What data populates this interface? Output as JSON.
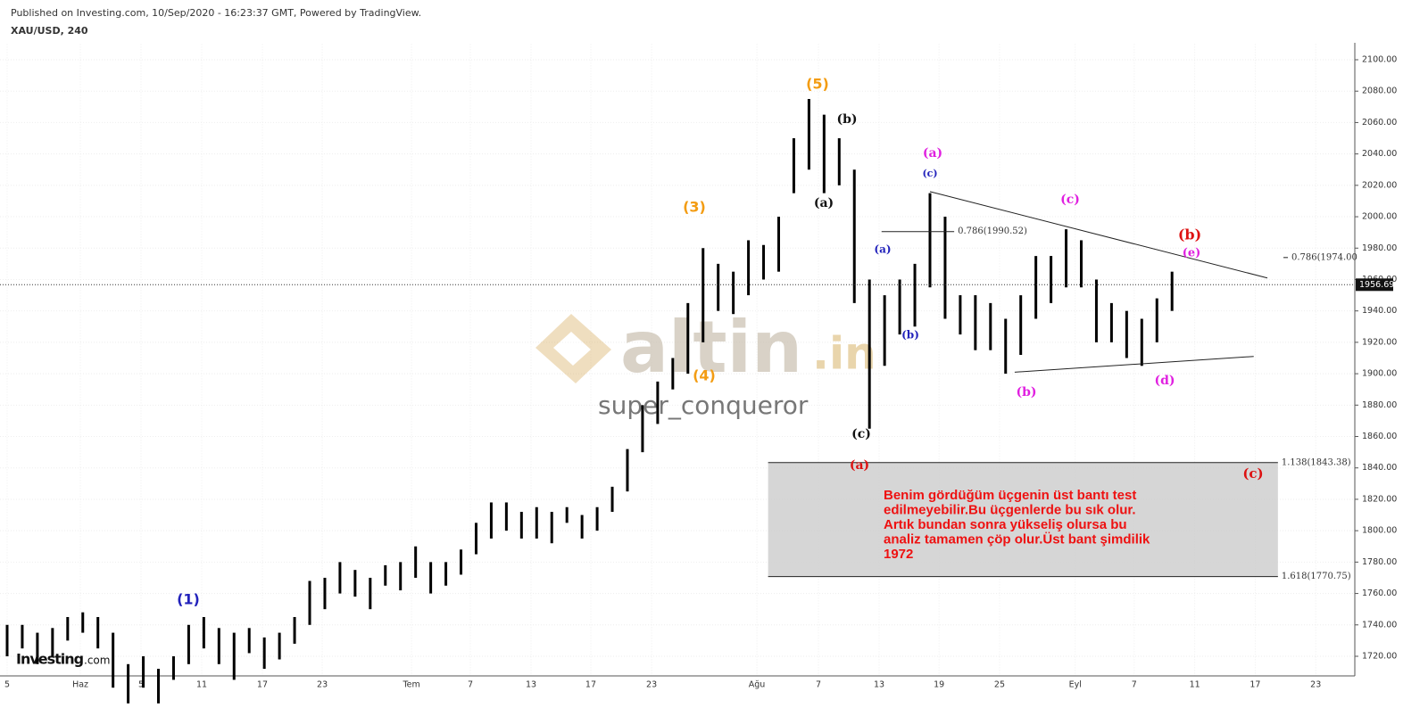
{
  "header": {
    "published": "Published on Investing.com, 10/Sep/2020 - 16:23:37 GMT, Powered by TradingView.",
    "symbol": "XAU/USD, 240"
  },
  "watermark": {
    "brand": "altin",
    "suffix": ".in",
    "author": "super_conqueror",
    "logo": "Investing",
    "logo_suffix": ".com"
  },
  "chart_data": {
    "type": "ohlc",
    "high": [
      1740,
      1740,
      1735,
      1738,
      1745,
      1748,
      1745,
      1735,
      1715,
      1720,
      1712,
      1720,
      1740,
      1745,
      1738,
      1735,
      1738,
      1732,
      1735,
      1745,
      1768,
      1770,
      1780,
      1775,
      1770,
      1778,
      1780,
      1790,
      1780,
      1780,
      1788,
      1805,
      1818,
      1818,
      1812,
      1815,
      1812,
      1815,
      1810,
      1815,
      1828,
      1852,
      1880,
      1895,
      1910,
      1945,
      1980,
      1970,
      1965,
      1985,
      1982,
      2000,
      2050,
      2075,
      2065,
      2050,
      2030,
      1960,
      1950,
      1960,
      1970,
      2015,
      2000,
      1950,
      1950,
      1945,
      1935,
      1950,
      1975,
      1975,
      1992,
      1985,
      1960,
      1945,
      1940,
      1935,
      1948,
      1965
    ],
    "low": [
      1720,
      1725,
      1715,
      1720,
      1730,
      1735,
      1725,
      1700,
      1690,
      1700,
      1690,
      1705,
      1715,
      1725,
      1715,
      1705,
      1722,
      1712,
      1718,
      1728,
      1740,
      1750,
      1760,
      1758,
      1750,
      1765,
      1762,
      1770,
      1760,
      1765,
      1772,
      1785,
      1795,
      1800,
      1795,
      1795,
      1792,
      1805,
      1795,
      1800,
      1812,
      1825,
      1850,
      1868,
      1890,
      1900,
      1920,
      1940,
      1938,
      1950,
      1960,
      1965,
      2015,
      2030,
      2015,
      2020,
      1945,
      1865,
      1905,
      1925,
      1930,
      1955,
      1935,
      1925,
      1915,
      1915,
      1900,
      1912,
      1935,
      1945,
      1955,
      1955,
      1920,
      1920,
      1910,
      1905,
      1920,
      1940
    ],
    "last": 1956.69,
    "xlim": [
      0,
      89.2
    ],
    "ylim": [
      1710,
      2110
    ],
    "xticks": [
      {
        "value": 0,
        "label": "5"
      },
      {
        "value": 4.84,
        "label": "Haz"
      },
      {
        "value": 8.85,
        "label": "5"
      },
      {
        "value": 12.86,
        "label": "11"
      },
      {
        "value": 16.87,
        "label": "17"
      },
      {
        "value": 20.83,
        "label": "23"
      },
      {
        "value": 26.73,
        "label": "Tem"
      },
      {
        "value": 30.62,
        "label": "7"
      },
      {
        "value": 34.63,
        "label": "13"
      },
      {
        "value": 38.58,
        "label": "17"
      },
      {
        "value": 42.6,
        "label": "23"
      },
      {
        "value": 49.56,
        "label": "Ağu"
      },
      {
        "value": 53.63,
        "label": "7"
      },
      {
        "value": 57.64,
        "label": "13"
      },
      {
        "value": 61.6,
        "label": "19"
      },
      {
        "value": 65.6,
        "label": "25"
      },
      {
        "value": 70.6,
        "label": "Eyl"
      },
      {
        "value": 74.5,
        "label": "7"
      },
      {
        "value": 78.5,
        "label": "11"
      },
      {
        "value": 82.5,
        "label": "17"
      },
      {
        "value": 86.5,
        "label": "23"
      }
    ],
    "yticks": [
      {
        "value": 1720,
        "label": "1720.00"
      },
      {
        "value": 1740,
        "label": "1740.00"
      },
      {
        "value": 1760,
        "label": "1760.00"
      },
      {
        "value": 1780,
        "label": "1780.00"
      },
      {
        "value": 1800,
        "label": "1800.00"
      },
      {
        "value": 1820,
        "label": "1820.00"
      },
      {
        "value": 1840,
        "label": "1840.00"
      },
      {
        "value": 1860,
        "label": "1860.00"
      },
      {
        "value": 1880,
        "label": "1880.00"
      },
      {
        "value": 1900,
        "label": "1900.00"
      },
      {
        "value": 1920,
        "label": "1920.00"
      },
      {
        "value": 1940,
        "label": "1940.00"
      },
      {
        "value": 1960,
        "label": "1960.00"
      },
      {
        "value": 1980,
        "label": "1980.00"
      },
      {
        "value": 2000,
        "label": "2000.00"
      },
      {
        "value": 2020,
        "label": "2020.00"
      },
      {
        "value": 2040,
        "label": "2040.00"
      },
      {
        "value": 2060,
        "label": "2060.00"
      },
      {
        "value": 2080,
        "label": "2080.00"
      },
      {
        "value": 2100,
        "label": "2100.00"
      }
    ],
    "grid": true,
    "color": "#000000",
    "fib_lines": [
      {
        "label": "0.786(1990.52)",
        "value": 1990.52,
        "from": 57.8,
        "to": 62.6
      },
      {
        "label": "0.786(1974.00",
        "value": 1974
      }
    ],
    "zone": {
      "top": {
        "label": "1.138(1843.38)",
        "value": 1843.38
      },
      "bottom": {
        "label": "1.618(1770.75)",
        "value": 1770.75
      },
      "from": 50.3,
      "to": 84.0,
      "color": "#cccccc"
    },
    "trendlines": [
      {
        "from": [
          61.0,
          2016
        ],
        "to": [
          83.3,
          1961
        ]
      },
      {
        "from": [
          66.6,
          1901
        ],
        "to": [
          82.4,
          1911
        ]
      }
    ],
    "wave_labels": [
      {
        "text": "(5)",
        "color": "#f39c12"
      },
      {
        "text": "(3)",
        "color": "#f39c12"
      },
      {
        "text": "(4)",
        "color": "#f39c12"
      },
      {
        "text": "(1)",
        "color": "#2222bb"
      },
      {
        "text": "(b)",
        "color": "#111111"
      },
      {
        "text": "(a)",
        "color": "#111111"
      },
      {
        "text": "(c)",
        "color": "#111111"
      },
      {
        "text": "(a)",
        "color": "#dd1111"
      },
      {
        "text": "(a)",
        "color": "#e020e0"
      },
      {
        "text": "(c)",
        "color": "#2222bb"
      },
      {
        "text": "(a)",
        "color": "#2222bb"
      },
      {
        "text": "(b)",
        "color": "#2222bb"
      },
      {
        "text": "(c)",
        "color": "#e020e0"
      },
      {
        "text": "(b)",
        "color": "#e020e0"
      },
      {
        "text": "(d)",
        "color": "#e020e0"
      },
      {
        "text": "(b)",
        "color": "#dd1111"
      },
      {
        "text": "(e)",
        "color": "#e020e0"
      },
      {
        "text": "(c)",
        "color": "#dd1111"
      }
    ],
    "note": [
      "Benim gördüğüm üçgenin üst bantı test",
      "edilmeyebilir.Bu üçgenlerde bu sık olur.",
      "Artık bundan sonra yükseliş olursa bu",
      "analiz tamamen çöp olur.Üst bant şimdilik",
      "1972"
    ]
  }
}
